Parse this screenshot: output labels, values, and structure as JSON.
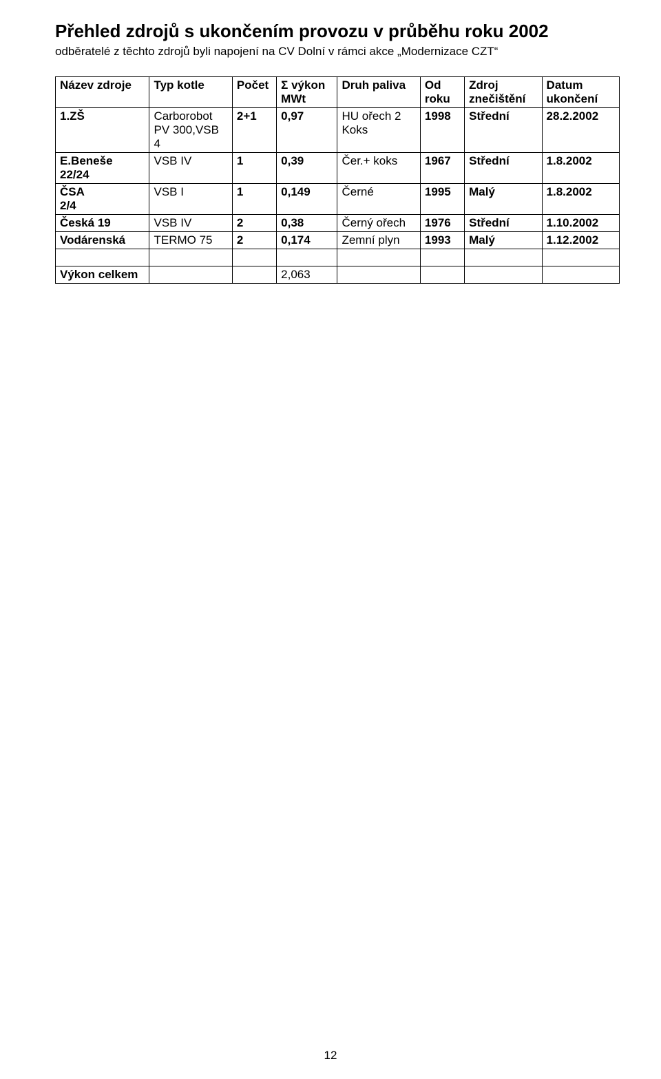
{
  "title": "Přehled zdrojů s ukončením provozu v průběhu roku 2002",
  "subtitle": "odběratelé z těchto zdrojů byli napojení na CV Dolní v rámci akce „Modernizace CZT“",
  "headers": {
    "c0": "Název zdroje",
    "c1": "Typ kotle",
    "c2": "Počet",
    "c3": "Σ výkon MWt",
    "c4": "Druh paliva",
    "c5": "Od roku",
    "c6": "Zdroj znečištění",
    "c7": "Datum ukončení"
  },
  "rows": [
    {
      "c0": "1.ZŠ",
      "c1": "Carborobot PV 300,VSB 4",
      "c2": "2+1",
      "c3": "0,97",
      "c4": "HU ořech 2\nKoks",
      "c5": "1998",
      "c6": "Střední",
      "c7": "28.2.2002"
    },
    {
      "c0": "E.Beneše 22/24",
      "c1": "VSB   IV",
      "c2": "1",
      "c3": "0,39",
      "c4": "Čer.+ koks",
      "c5": "1967",
      "c6": "Střední",
      "c7": "1.8.2002"
    },
    {
      "c0": "ČSA\n2/4",
      "c1": "VSB   I",
      "c2": "1",
      "c3": "0,149",
      "c4": "Černé",
      "c5": "1995",
      "c6": "Malý",
      "c7": "1.8.2002"
    },
    {
      "c0": "Česká 19",
      "c1": "VSB   IV",
      "c2": "2",
      "c3": "0,38",
      "c4": "Černý ořech",
      "c5": "1976",
      "c6": "Střední",
      "c7": "1.10.2002"
    },
    {
      "c0": "Vodárenská",
      "c1": "TERMO 75",
      "c2": "2",
      "c3": "0,174",
      "c4": "Zemní plyn",
      "c5": "1993",
      "c6": "Malý",
      "c7": "1.12.2002"
    }
  ],
  "total": {
    "label": "Výkon celkem",
    "value": "2,063"
  },
  "page_number": "12",
  "bold_cols": [
    "c0",
    "c2",
    "c3",
    "c5",
    "c6",
    "c7"
  ]
}
